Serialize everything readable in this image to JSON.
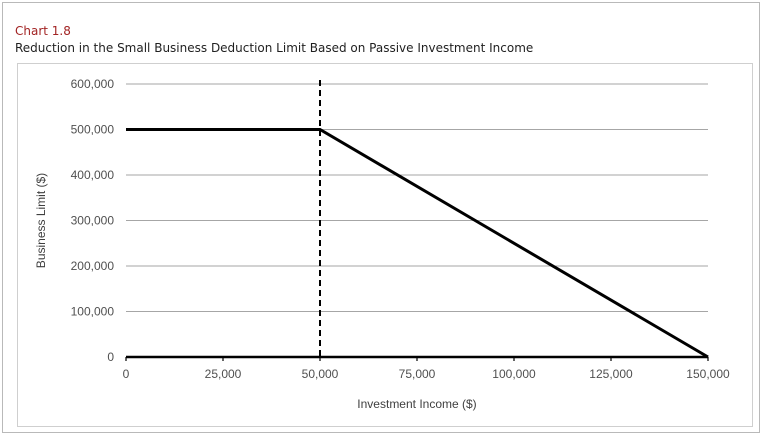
{
  "header": {
    "chart_number": "Chart 1.8",
    "title": "Reduction in the Small Business Deduction Limit Based on Passive Investment Income"
  },
  "chart_data": {
    "type": "line",
    "title": "Reduction in the Small Business Deduction Limit Based on Passive Investment Income",
    "xlabel": "Investment Income ($)",
    "ylabel": "Business Limit ($)",
    "xlim": [
      0,
      150000
    ],
    "ylim": [
      0,
      600000
    ],
    "x_ticks": [
      {
        "value": 0,
        "label": "0"
      },
      {
        "value": 25000,
        "label": "25,000"
      },
      {
        "value": 50000,
        "label": "50,000"
      },
      {
        "value": 75000,
        "label": "75,000"
      },
      {
        "value": 100000,
        "label": "100,000"
      },
      {
        "value": 125000,
        "label": "125,000"
      },
      {
        "value": 150000,
        "label": "150,000"
      }
    ],
    "y_ticks": [
      {
        "value": 0,
        "label": "0"
      },
      {
        "value": 100000,
        "label": "100,000"
      },
      {
        "value": 200000,
        "label": "200,000"
      },
      {
        "value": 300000,
        "label": "300,000"
      },
      {
        "value": 400000,
        "label": "400,000"
      },
      {
        "value": 500000,
        "label": "500,000"
      },
      {
        "value": 600000,
        "label": "600,000"
      }
    ],
    "grid": true,
    "series": [
      {
        "x": [
          0,
          50000,
          150000
        ],
        "y": [
          500000,
          500000,
          0
        ],
        "color": "#000000"
      }
    ],
    "reference_lines": [
      {
        "orientation": "vertical",
        "x": 50000,
        "style": "dashed",
        "color": "#000000"
      }
    ]
  }
}
